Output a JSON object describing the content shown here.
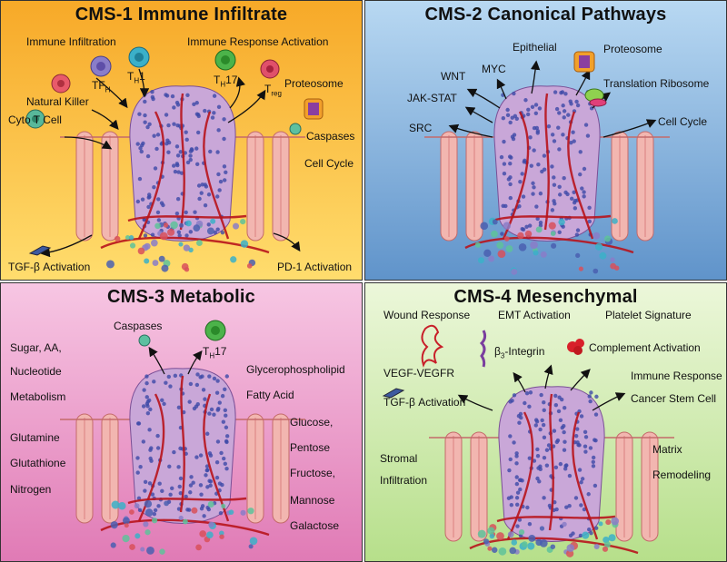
{
  "panels": [
    {
      "title": "CMS-1 Immune Infiltrate",
      "colors": {
        "top": "#f7a928",
        "bottom": "#ffe07a"
      },
      "labels": {
        "immune_infiltration": "Immune Infiltration",
        "immune_response_activation": "Immune Response Activation",
        "th": "T",
        "th_sub": "H",
        "th_suffix": "1",
        "tfh": "TF",
        "tfh_sub": "H",
        "th17": "T",
        "th17_sub": "H",
        "th17_suffix": "17",
        "treg": "T",
        "treg_sub": "reg",
        "natural_killer": "Natural Killer",
        "cyto_t_cell": "Cyto T Cell",
        "proteosome": "Proteosome",
        "caspases": "Caspases",
        "cell_cycle": "Cell Cycle",
        "tgf_beta_activation": "TGF-β Activation",
        "pd1_activation": "PD-1 Activation"
      }
    },
    {
      "title": "CMS-2 Canonical Pathways",
      "colors": {
        "top": "#b6d6f0",
        "bottom": "#5f94cb"
      },
      "labels": {
        "myc": "MYC",
        "epithelial": "Epithelial",
        "wnt": "WNT",
        "proteosome": "Proteosome",
        "jak_stat": "JAK-STAT",
        "translation_ribosome": "Translation Ribosome",
        "src": "SRC",
        "cell_cycle": "Cell Cycle"
      }
    },
    {
      "title": "CMS-3 Metabolic",
      "colors": {
        "top": "#f6bfe0",
        "bottom": "#e27bb7"
      },
      "labels": {
        "caspases": "Caspases",
        "th17": "T",
        "th17_sub": "H",
        "th17_suffix": "17",
        "sugar_aa": "Sugar, AA,",
        "nucleotide": "Nucleotide",
        "metabolism": "Metabolism",
        "glycerophospholipid": "Glycerophospholipid",
        "fatty_acid": "Fatty Acid",
        "glutamine": "Glutamine",
        "glutathione": "Glutathione",
        "nitrogen": "Nitrogen",
        "glucose": "Glucose,",
        "pentose": "Pentose",
        "fructose": "Fructose,",
        "mannose": "Mannose",
        "galactose": "Galactose"
      }
    },
    {
      "title": "CMS-4 Mesenchymal",
      "colors": {
        "top": "#e9f6d5",
        "bottom": "#b8e08d"
      },
      "labels": {
        "wound_response": "Wound Response",
        "emt_activation": "EMT Activation",
        "platelet_signature": "Platelet Signature",
        "beta3_integrin_pre": "β",
        "beta3_integrin_sub": "3",
        "beta3_integrin_post": "-Integrin",
        "complement_activation": "Complement Activation",
        "vegf_vegfr": "VEGF-VEGFR",
        "immune_response": "Immune Response",
        "tgf_beta_activation": "TGF-β Activation",
        "cancer_stem_cell": "Cancer Stem Cell",
        "stromal": "Stromal",
        "infiltration": "Infiltration",
        "matrix": "Matrix",
        "remodeling": "Remodeling"
      }
    }
  ]
}
